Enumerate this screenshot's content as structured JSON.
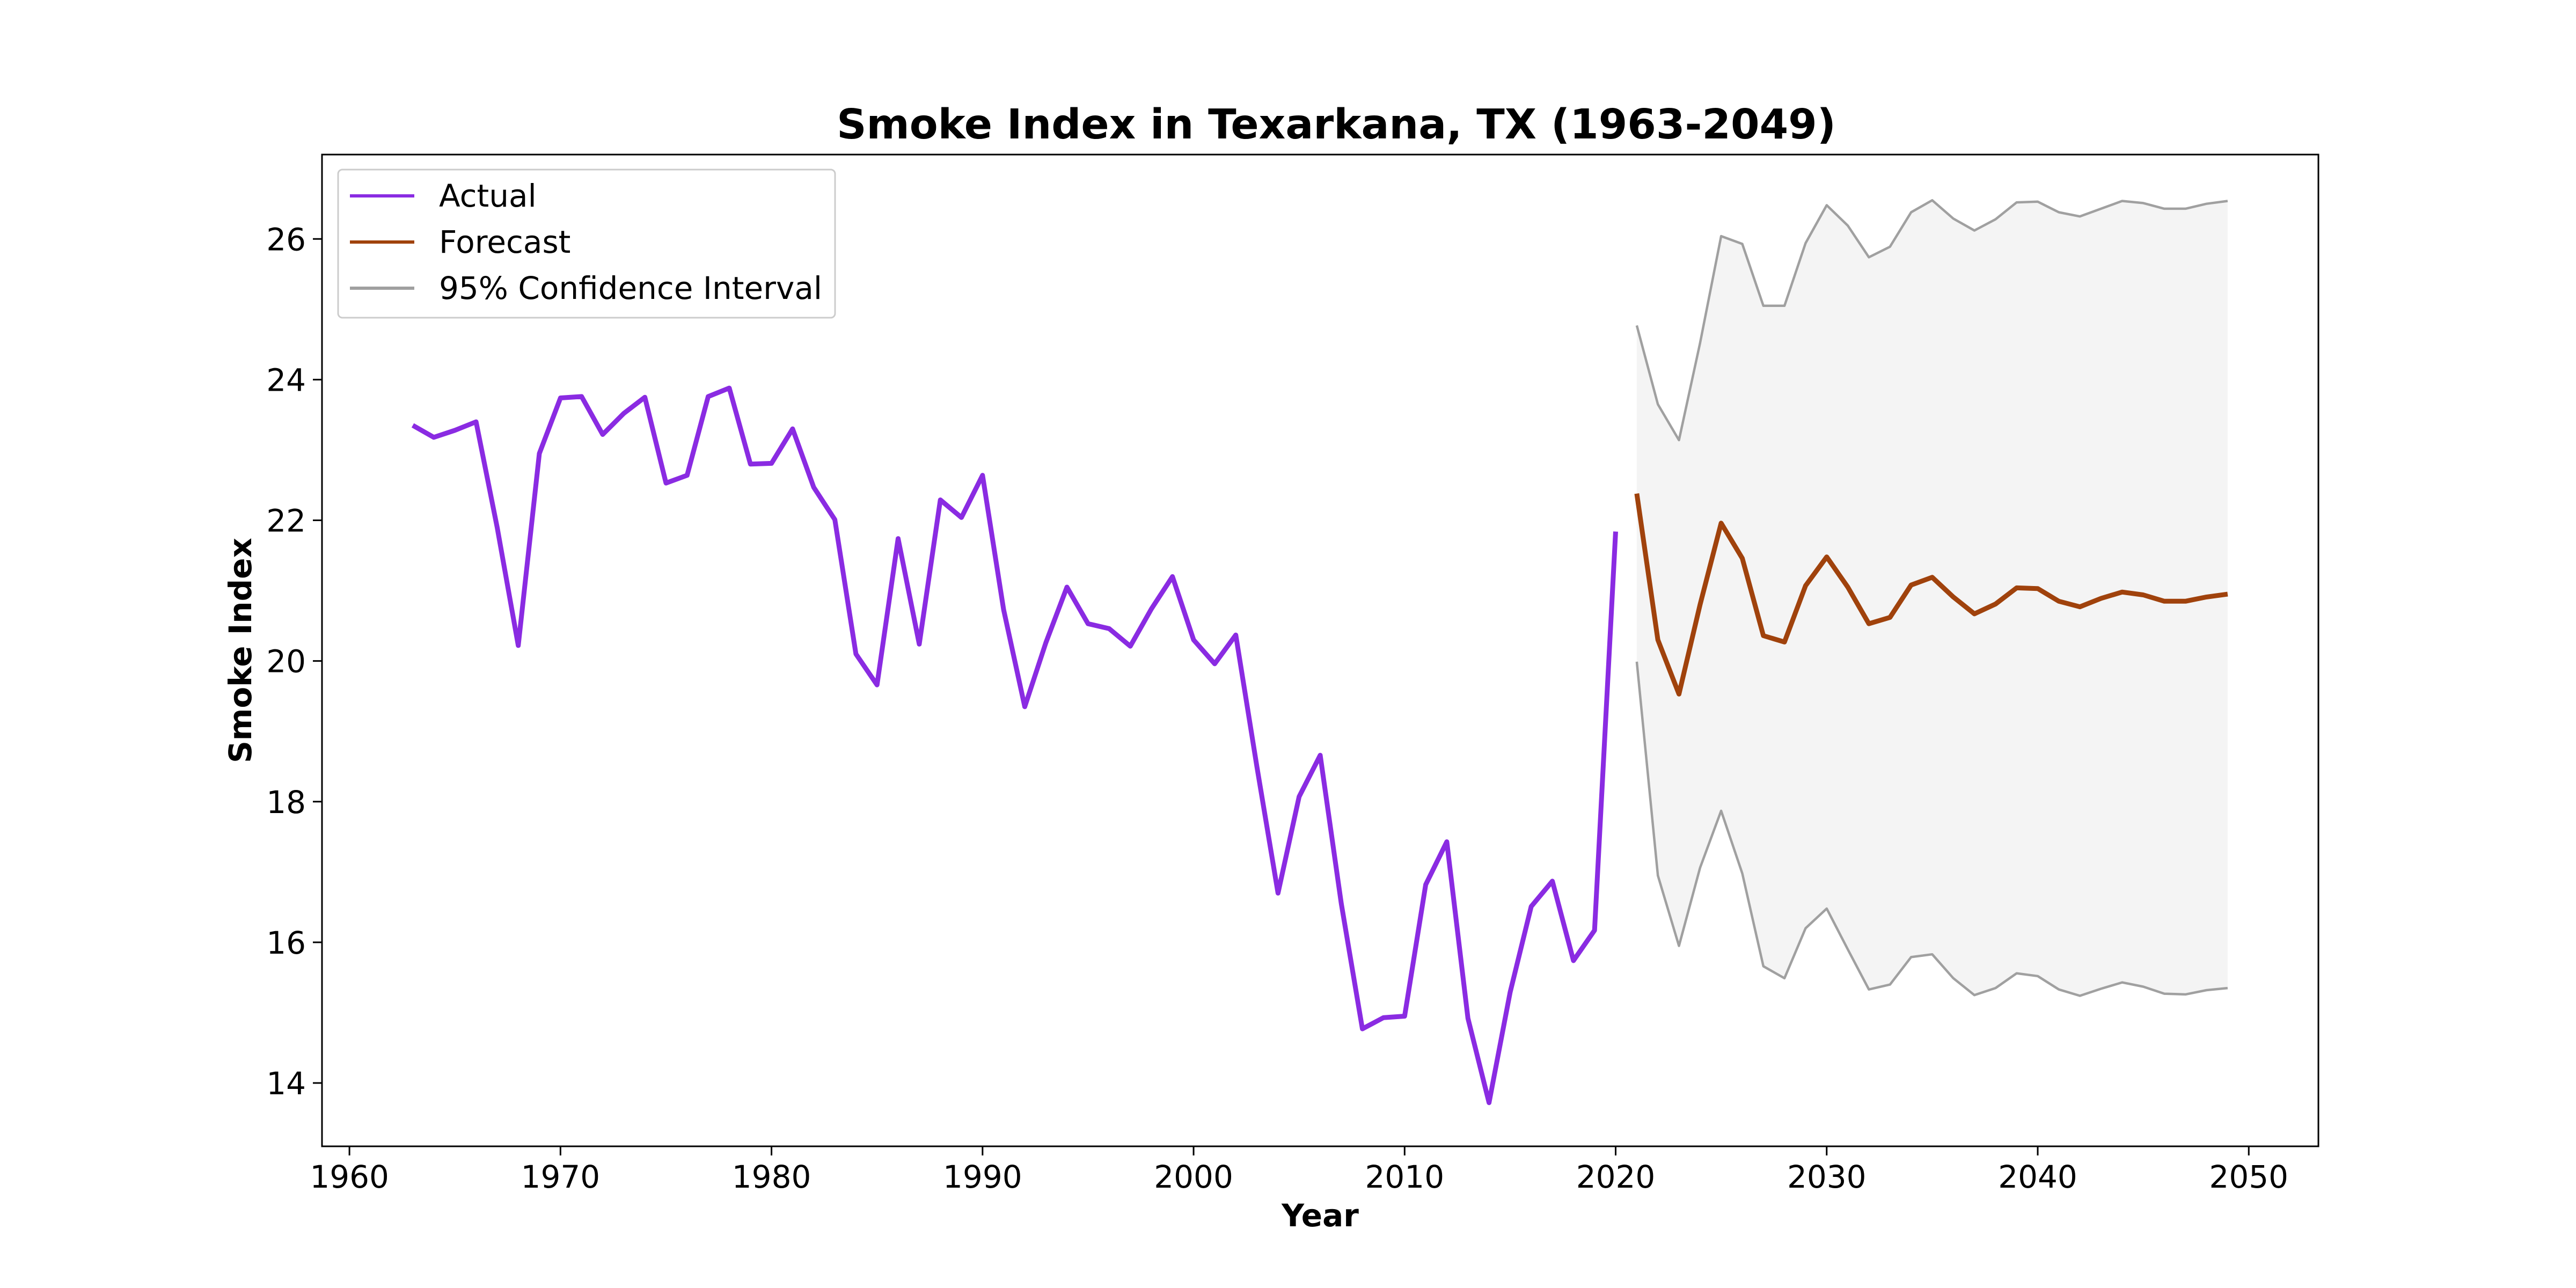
{
  "chart_data": {
    "type": "line",
    "title": "Smoke Index in Texarkana, TX (1963-2049)",
    "xlabel": "Year",
    "ylabel": "Smoke Index",
    "xlim": [
      1958.7,
      2053.3
    ],
    "ylim": [
      13.1,
      27.2
    ],
    "xticks": [
      1960,
      1970,
      1980,
      1990,
      2000,
      2010,
      2020,
      2030,
      2040,
      2050
    ],
    "yticks": [
      14,
      16,
      18,
      20,
      22,
      24,
      26
    ],
    "grid": false,
    "legend": {
      "position": "top-left",
      "entries": [
        {
          "label": "Actual",
          "color": "#8a2be2"
        },
        {
          "label": "Forecast",
          "color": "#a0420c"
        },
        {
          "label": "95% Confidence Interval",
          "color": "#a0a0a0"
        }
      ]
    },
    "colors": {
      "actual": "#8a2be2",
      "forecast": "#a0420c",
      "ci": "#a0a0a0",
      "ci_fill": "#f4f4f4"
    },
    "series": [
      {
        "name": "Actual",
        "x": [
          1963,
          1964,
          1965,
          1966,
          1967,
          1968,
          1969,
          1970,
          1971,
          1972,
          1973,
          1974,
          1975,
          1976,
          1977,
          1978,
          1979,
          1980,
          1981,
          1982,
          1983,
          1984,
          1985,
          1986,
          1987,
          1988,
          1989,
          1990,
          1991,
          1992,
          1993,
          1994,
          1995,
          1996,
          1997,
          1998,
          1999,
          2000,
          2001,
          2002,
          2003,
          2004,
          2005,
          2006,
          2007,
          2008,
          2009,
          2010,
          2011,
          2012,
          2013,
          2014,
          2015,
          2016,
          2017,
          2018,
          2019,
          2020
        ],
        "values": [
          23.35,
          23.18,
          23.28,
          23.4,
          21.9,
          20.22,
          22.95,
          23.74,
          23.76,
          23.22,
          23.52,
          23.75,
          22.53,
          22.64,
          23.76,
          23.88,
          22.8,
          22.81,
          23.3,
          22.47,
          22.01,
          20.1,
          19.66,
          21.74,
          20.24,
          22.29,
          22.04,
          22.64,
          20.73,
          19.35,
          20.26,
          21.05,
          20.53,
          20.46,
          20.21,
          20.74,
          21.2,
          20.3,
          19.96,
          20.37,
          18.5,
          16.7,
          18.07,
          18.66,
          16.55,
          14.77,
          14.93,
          14.95,
          16.82,
          17.43,
          14.92,
          13.72,
          15.29,
          16.51,
          16.87,
          15.74,
          16.17,
          21.84
        ]
      },
      {
        "name": "Forecast",
        "x": [
          2021,
          2022,
          2023,
          2024,
          2025,
          2026,
          2027,
          2028,
          2029,
          2030,
          2031,
          2032,
          2033,
          2034,
          2035,
          2036,
          2037,
          2038,
          2039,
          2040,
          2041,
          2042,
          2043,
          2044,
          2045,
          2046,
          2047,
          2048,
          2049
        ],
        "values": [
          22.38,
          20.3,
          19.53,
          20.8,
          21.96,
          21.46,
          20.36,
          20.27,
          21.07,
          21.48,
          21.05,
          20.53,
          20.62,
          21.08,
          21.19,
          20.91,
          20.67,
          20.81,
          21.04,
          21.03,
          20.85,
          20.77,
          20.89,
          20.98,
          20.94,
          20.85,
          20.85,
          20.91,
          20.95
        ]
      },
      {
        "name": "95% Confidence Interval",
        "x": [
          2021,
          2022,
          2023,
          2024,
          2025,
          2026,
          2027,
          2028,
          2029,
          2030,
          2031,
          2032,
          2033,
          2034,
          2035,
          2036,
          2037,
          2038,
          2039,
          2040,
          2041,
          2042,
          2043,
          2044,
          2045,
          2046,
          2047,
          2048,
          2049
        ],
        "upper": [
          24.77,
          23.65,
          23.14,
          24.52,
          26.04,
          25.93,
          25.05,
          25.05,
          25.94,
          26.48,
          26.19,
          25.74,
          25.89,
          26.38,
          26.55,
          26.29,
          26.12,
          26.28,
          26.52,
          26.53,
          26.38,
          26.32,
          26.43,
          26.54,
          26.51,
          26.43,
          26.43,
          26.5,
          26.54
        ],
        "lower": [
          19.99,
          16.95,
          15.95,
          17.06,
          17.87,
          16.98,
          15.66,
          15.49,
          16.2,
          16.48,
          15.9,
          15.33,
          15.4,
          15.79,
          15.83,
          15.49,
          15.25,
          15.35,
          15.56,
          15.52,
          15.33,
          15.24,
          15.34,
          15.43,
          15.37,
          15.27,
          15.26,
          15.32,
          15.35
        ]
      }
    ]
  }
}
